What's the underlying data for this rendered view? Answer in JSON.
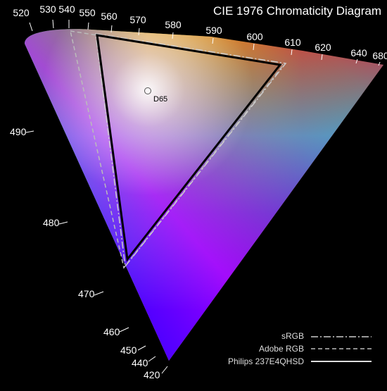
{
  "chart_data": {
    "type": "scatter",
    "title": "CIE 1976 Chromaticity Diagram",
    "wavelength_labels": [
      "520",
      "530",
      "540",
      "550",
      "560",
      "570",
      "580",
      "590",
      "600",
      "610",
      "620",
      "640",
      "680",
      "490",
      "480",
      "470",
      "460",
      "450",
      "440",
      "420"
    ],
    "white_point": {
      "label": "D65"
    },
    "series": [
      {
        "name": "sRGB",
        "style": "dash-dot",
        "color": "#cccccc"
      },
      {
        "name": "Adobe RGB",
        "style": "dashed",
        "color": "#bbbbbb"
      },
      {
        "name": "Philips 237E4QHSD",
        "style": "solid",
        "color": "#dddddd"
      }
    ]
  }
}
